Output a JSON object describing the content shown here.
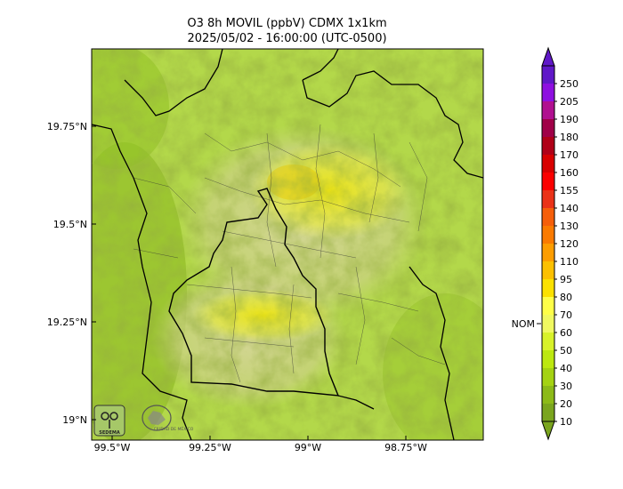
{
  "title_line1": "O3 8h MOVIL (ppbV) CDMX 1x1km",
  "title_line2": "2025/05/02 - 16:00:00 (UTC-0500)",
  "map": {
    "lon_ticks": [
      "99.5°W",
      "99.25°W",
      "99°W",
      "98.75°W"
    ],
    "lat_ticks": [
      "19.75°N",
      "19.5°N",
      "19.25°N",
      "19°N"
    ]
  },
  "colorbar": {
    "levels": [
      "10",
      "20",
      "30",
      "40",
      "50",
      "60",
      "70",
      "80",
      "95",
      "110",
      "120",
      "130",
      "140",
      "155",
      "160",
      "170",
      "180",
      "190",
      "205",
      "250"
    ],
    "colors": [
      "#7aa51e",
      "#8cba18",
      "#a4d212",
      "#bce810",
      "#d8f22a",
      "#f0f860",
      "#fefe48",
      "#fbe100",
      "#fcc000",
      "#fd9d00",
      "#fa7a00",
      "#f55e0a",
      "#ea3218",
      "#fb0000",
      "#d80000",
      "#b00018",
      "#a00048",
      "#b01090",
      "#8e10e0",
      "#6018c8"
    ],
    "nom_label": "NOM",
    "nom_value": 65
  },
  "logos": [
    {
      "name": "sedema-logo",
      "text": "SEDEMA"
    },
    {
      "name": "cdmx-logo",
      "text": "CIUDAD DE MÉXICO"
    }
  ]
}
